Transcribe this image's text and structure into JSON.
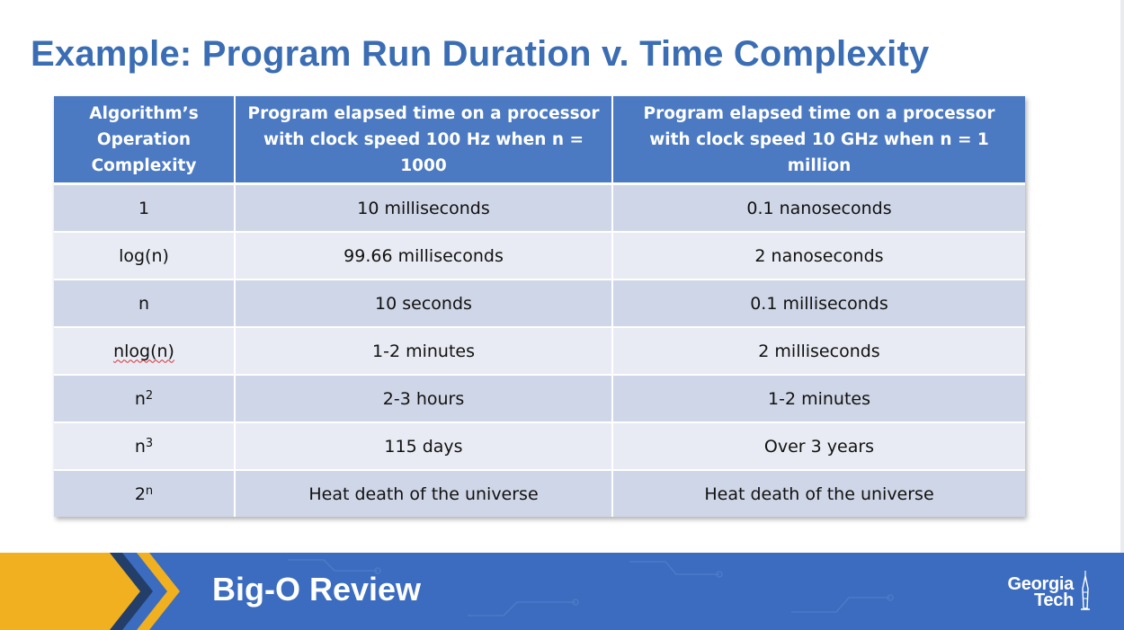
{
  "slide": {
    "title": "Example: Program Run Duration v. Time Complexity",
    "footer_title": "Big-O Review",
    "logo": {
      "line1": "Georgia",
      "line2": "Tech",
      "icon": "tower-icon"
    }
  },
  "table": {
    "headers": {
      "complexity": "Algorithm’s Operation Complexity",
      "col1": "Program elapsed time on a processor with clock speed 100 Hz when n = 1000",
      "col2": "Program elapsed time on a processor with clock speed 10 GHz when n = 1 million"
    },
    "rows": [
      {
        "complexity": "1",
        "time_100hz": "10 milliseconds",
        "time_10ghz": "0.1 nanoseconds"
      },
      {
        "complexity": "log(n)",
        "time_100hz": "99.66 milliseconds",
        "time_10ghz": "2 nanoseconds"
      },
      {
        "complexity": "n",
        "time_100hz": "10 seconds",
        "time_10ghz": "0.1 milliseconds"
      },
      {
        "complexity": "nlog(n)",
        "time_100hz": "1-2 minutes",
        "time_10ghz": "2 milliseconds"
      },
      {
        "complexity_base": "n",
        "complexity_exp": "2",
        "time_100hz": "2-3 hours",
        "time_10ghz": "1-2 minutes"
      },
      {
        "complexity_base": "n",
        "complexity_exp": "3",
        "time_100hz": "115 days",
        "time_10ghz": "Over 3 years"
      },
      {
        "complexity_base": "2",
        "complexity_exp": "n",
        "time_100hz": "Heat death of the universe",
        "time_10ghz": "Heat death of the universe"
      }
    ]
  },
  "colors": {
    "title": "#3a6db3",
    "header_bg": "#4b7ac3",
    "row_odd": "#cfd6e7",
    "row_even": "#e8ebf3",
    "footer_bg": "#3b6cbf",
    "chevron_gold": "#f0b020"
  }
}
